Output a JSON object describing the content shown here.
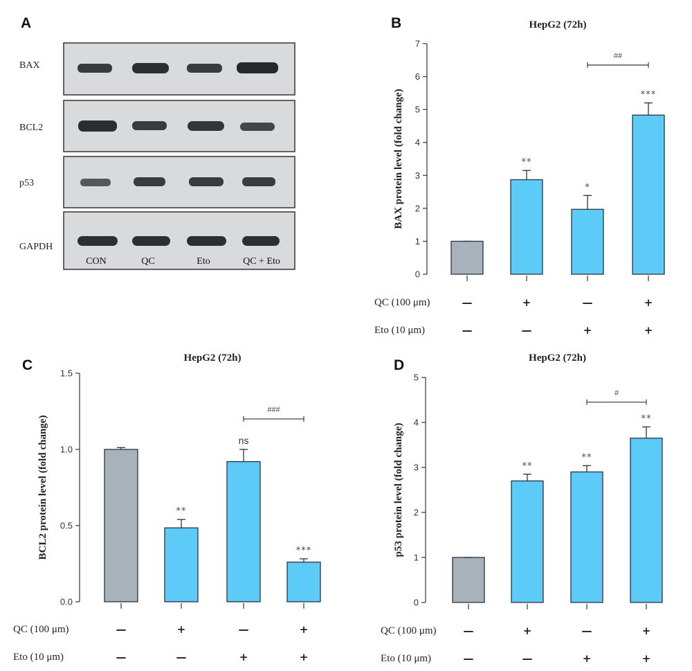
{
  "colors": {
    "control_bar": "#a7b2bb",
    "treated_bar": "#5ccbf7",
    "bar_edge": "#2a3440",
    "blot_bg": "#d8dadb",
    "band": "#1e1f21"
  },
  "blot": {
    "letter": "A",
    "rows": [
      "BAX",
      "BCL2",
      "p53",
      "GAPDH"
    ],
    "lanes": [
      "CON",
      "QC",
      "Eto",
      "QC + Eto"
    ]
  },
  "treatments": {
    "qc_label": "QC (100 μm)",
    "eto_label": "Eto (10 μm)",
    "qc": [
      "—",
      "+",
      "—",
      "+"
    ],
    "eto": [
      "—",
      "—",
      "+",
      "+"
    ]
  },
  "chart_data": [
    {
      "id": "B",
      "letter": "B",
      "type": "bar",
      "title": "HepG2 (72h)",
      "ylabel": "BAX protein level (fold change)",
      "ylim": [
        0,
        7
      ],
      "yticks": [
        0,
        1,
        2,
        3,
        4,
        5,
        6,
        7
      ],
      "yticklabels": [
        "0",
        "1",
        "2",
        "3",
        "4",
        "5",
        "6",
        "7"
      ],
      "values": [
        1.0,
        2.87,
        1.97,
        4.83
      ],
      "errors": [
        0.0,
        0.28,
        0.42,
        0.37
      ],
      "significance": [
        "",
        "**",
        "*",
        "***"
      ],
      "comparison": {
        "from": 2,
        "to": 3,
        "y": 6.35,
        "label": "##"
      }
    },
    {
      "id": "C",
      "letter": "C",
      "type": "bar",
      "title": "HepG2 (72h)",
      "ylabel": "BCL2 protein level (fold change)",
      "ylim": [
        0,
        1.5
      ],
      "yticks": [
        0,
        0.5,
        1.0,
        1.5
      ],
      "yticklabels": [
        "0.0",
        "0.5",
        "1.0",
        "1.5"
      ],
      "values": [
        1.0,
        0.485,
        0.92,
        0.26
      ],
      "errors": [
        0.012,
        0.055,
        0.08,
        0.022
      ],
      "significance": [
        "",
        "**",
        "ns",
        "***"
      ],
      "comparison": {
        "from": 2,
        "to": 3,
        "y": 1.2,
        "label": "###"
      }
    },
    {
      "id": "D",
      "letter": "D",
      "type": "bar",
      "title": "HepG2 (72h)",
      "ylabel": "p53 protein level (fold change)",
      "ylim": [
        0,
        5
      ],
      "yticks": [
        0,
        1,
        2,
        3,
        4,
        5
      ],
      "yticklabels": [
        "0",
        "1",
        "2",
        "3",
        "4",
        "5"
      ],
      "values": [
        1.0,
        2.7,
        2.9,
        3.65
      ],
      "errors": [
        0.0,
        0.15,
        0.14,
        0.25
      ],
      "significance": [
        "",
        "**",
        "**",
        "**"
      ],
      "comparison": {
        "from": 2,
        "to": 3,
        "y": 4.45,
        "label": "#"
      }
    }
  ]
}
